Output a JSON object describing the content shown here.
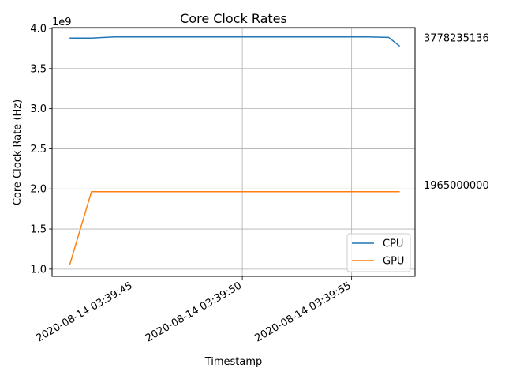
{
  "chart_data": {
    "type": "line",
    "title": "Core Clock Rates",
    "xlabel": "Timestamp",
    "ylabel": "Core Clock Rate (Hz)",
    "y_offset_label": "1e9",
    "y_scale": 1000000000,
    "ylim": [
      0.91,
      4.01
    ],
    "yticks": [
      1.0,
      1.5,
      2.0,
      2.5,
      3.0,
      3.5,
      4.0
    ],
    "xlim": [
      "2020-08-14 03:39:41.3",
      "2020-08-14 03:39:57.9"
    ],
    "xticks": [
      "2020-08-14 03:39:45",
      "2020-08-14 03:39:50",
      "2020-08-14 03:39:55"
    ],
    "grid": true,
    "legend_position": "lower-right",
    "x": [
      "2020-08-14 03:39:42.1",
      "2020-08-14 03:39:43.1",
      "2020-08-14 03:39:44.2",
      "2020-08-14 03:39:45.2",
      "2020-08-14 03:39:46.3",
      "2020-08-14 03:39:47.3",
      "2020-08-14 03:39:48.4",
      "2020-08-14 03:39:49.4",
      "2020-08-14 03:39:50.5",
      "2020-08-14 03:39:51.5",
      "2020-08-14 03:39:52.6",
      "2020-08-14 03:39:53.6",
      "2020-08-14 03:39:54.7",
      "2020-08-14 03:39:55.7",
      "2020-08-14 03:39:56.7",
      "2020-08-14 03:39:57.2"
    ],
    "series": [
      {
        "name": "CPU",
        "color": "#1f77b4",
        "values": [
          3.88,
          3.88,
          3.895,
          3.895,
          3.895,
          3.895,
          3.895,
          3.895,
          3.895,
          3.895,
          3.895,
          3.895,
          3.895,
          3.895,
          3.888,
          3.778235136
        ],
        "end_label": "3778235136"
      },
      {
        "name": "GPU",
        "color": "#ff7f0e",
        "values": [
          1.05,
          1.965,
          1.965,
          1.965,
          1.965,
          1.965,
          1.965,
          1.965,
          1.965,
          1.965,
          1.965,
          1.965,
          1.965,
          1.965,
          1.965,
          1.965
        ],
        "end_label": "1965000000"
      }
    ]
  }
}
